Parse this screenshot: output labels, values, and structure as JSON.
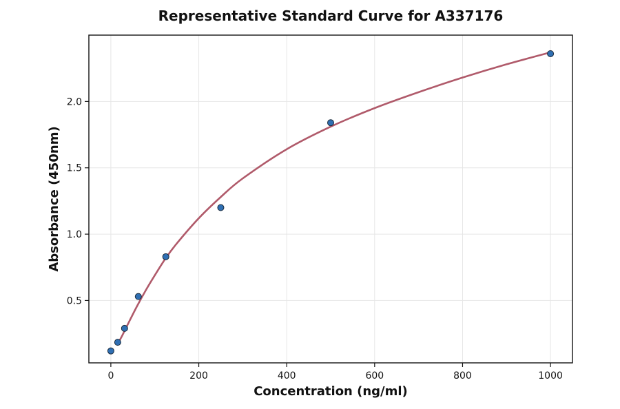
{
  "chart_data": {
    "type": "scatter",
    "title": "Representative Standard Curve for A337176",
    "xlabel": "Concentration (ng/ml)",
    "ylabel": "Absorbance (450nm)",
    "xlim": [
      -50,
      1050
    ],
    "ylim": [
      0.03,
      2.5
    ],
    "xticks": [
      0,
      200,
      400,
      600,
      800,
      1000
    ],
    "yticks": [
      0.5,
      1.0,
      1.5,
      2.0
    ],
    "xtick_labels": [
      "0",
      "200",
      "400",
      "600",
      "800",
      "1000"
    ],
    "ytick_labels": [
      "0.5",
      "1.0",
      "1.5",
      "2.0"
    ],
    "grid": true,
    "points": [
      {
        "x": 0,
        "y": 0.12
      },
      {
        "x": 15.6,
        "y": 0.185
      },
      {
        "x": 31.2,
        "y": 0.29
      },
      {
        "x": 62.5,
        "y": 0.53
      },
      {
        "x": 125,
        "y": 0.83
      },
      {
        "x": 250,
        "y": 1.2
      },
      {
        "x": 500,
        "y": 1.84
      },
      {
        "x": 1000,
        "y": 2.36
      }
    ],
    "fit_curve": {
      "type": "line",
      "x": [
        15,
        25,
        40,
        60,
        80,
        100,
        125,
        150,
        200,
        250,
        300,
        400,
        500,
        600,
        700,
        800,
        900,
        1000
      ],
      "y": [
        0.17,
        0.23,
        0.33,
        0.46,
        0.58,
        0.69,
        0.82,
        0.93,
        1.12,
        1.28,
        1.42,
        1.64,
        1.81,
        1.95,
        2.07,
        2.18,
        2.28,
        2.37
      ]
    },
    "colors": {
      "points": "#2f6fb3",
      "curve": "#b05a6a"
    }
  }
}
